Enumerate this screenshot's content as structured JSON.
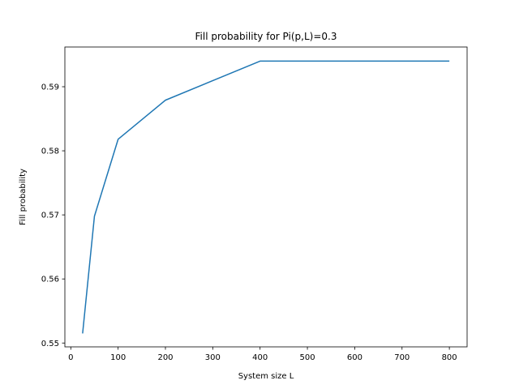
{
  "chart_data": {
    "type": "line",
    "title": "Fill probability for Pi(p,L)=0.3",
    "xlabel": "System size L",
    "ylabel": "Fill probability",
    "xlim": [
      -12.5,
      837.5
    ],
    "ylim": [
      0.5494,
      0.5962
    ],
    "xticks": [
      0,
      100,
      200,
      300,
      400,
      500,
      600,
      700,
      800
    ],
    "xtick_labels": [
      "0",
      "100",
      "200",
      "300",
      "400",
      "500",
      "600",
      "700",
      "800"
    ],
    "yticks": [
      0.55,
      0.56,
      0.57,
      0.58,
      0.59
    ],
    "ytick_labels": [
      "0.55",
      "0.56",
      "0.57",
      "0.58",
      "0.59"
    ],
    "grid": false,
    "series": [
      {
        "x": [
          25,
          50,
          100,
          200,
          400,
          800
        ],
        "y": [
          0.5515,
          0.5698,
          0.5818,
          0.5879,
          0.594,
          0.594
        ],
        "color": "#1f77b4"
      }
    ]
  }
}
